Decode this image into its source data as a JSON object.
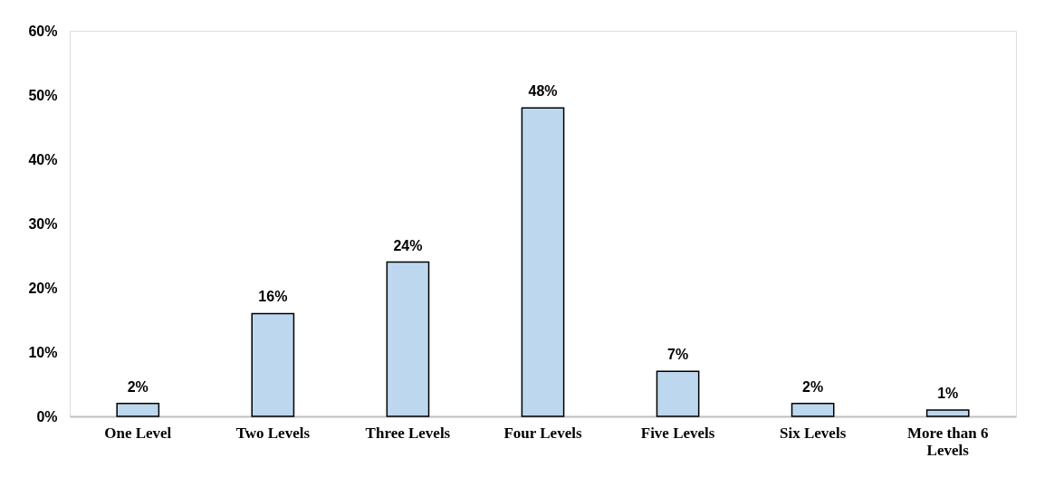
{
  "chart_data": {
    "type": "bar",
    "categories": [
      "One Level",
      "Two Levels",
      "Three Levels",
      "Four Levels",
      "Five Levels",
      "Six Levels",
      "More than 6 Levels"
    ],
    "values": [
      2,
      16,
      24,
      48,
      7,
      2,
      1
    ],
    "value_labels": [
      "2%",
      "16%",
      "24%",
      "48%",
      "7%",
      "2%",
      "1%"
    ],
    "color": "#bdd7ee",
    "ylim": [
      0,
      60
    ],
    "yticks": [
      {
        "value": 0,
        "label": "0%"
      },
      {
        "value": 10,
        "label": "10%"
      },
      {
        "value": 20,
        "label": "20%"
      },
      {
        "value": 30,
        "label": "30%"
      },
      {
        "value": 40,
        "label": "40%"
      },
      {
        "value": 50,
        "label": "50%"
      },
      {
        "value": 60,
        "label": "60%"
      }
    ],
    "grid": false
  }
}
